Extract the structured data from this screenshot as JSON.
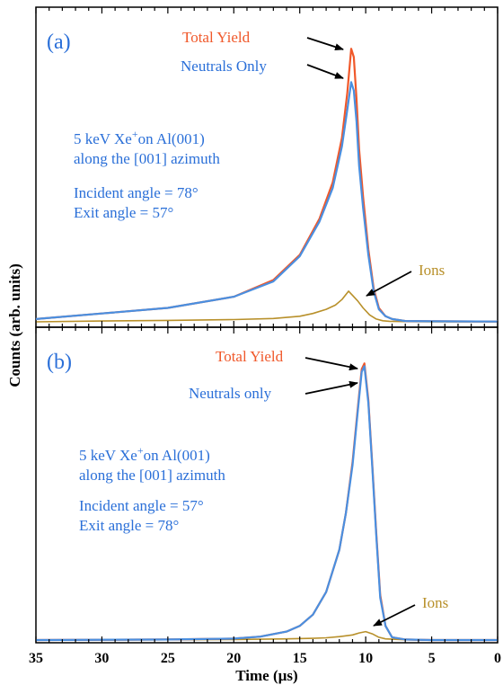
{
  "chart_data": {
    "type": "line",
    "xlabel": "Time (µs)",
    "ylabel": "Counts (arb. units)",
    "xlim": [
      35,
      0
    ],
    "x_reversed": true,
    "x_ticks": [
      "35",
      "30",
      "25",
      "20",
      "15",
      "10",
      "5",
      "0"
    ],
    "colors": {
      "total": "#f0582a",
      "neutrals": "#4a8fe0",
      "ions": "#b8902a",
      "text_blue": "#2a6fd8",
      "arrow": "#000000"
    },
    "panels": [
      {
        "label": "(a)",
        "labels": {
          "total": "Total Yield",
          "neutrals": "Neutrals Only",
          "ions": "Ions",
          "desc_line1": "5 keV Xe",
          "desc_sup": "+",
          "desc_line1_rest": "on Al(001)",
          "desc_line2": "along the  [001] azimuth",
          "incident": "Incident angle = 78°",
          "exit": "Exit angle = 57°"
        },
        "ylim": [
          0,
          1.0
        ],
        "series": [
          {
            "name": "Total Yield",
            "x": [
              35,
              30,
              25,
              20,
              17,
              15,
              13.5,
              12.5,
              11.8,
              11.4,
              11.1,
              10.9,
              10.7,
              10.5,
              10.2,
              9.8,
              9.4,
              9.0,
              8.5,
              8.0,
              7.0,
              5,
              0
            ],
            "y": [
              0.01,
              0.03,
              0.05,
              0.09,
              0.15,
              0.24,
              0.37,
              0.5,
              0.66,
              0.82,
              0.98,
              0.95,
              0.8,
              0.62,
              0.45,
              0.26,
              0.12,
              0.05,
              0.02,
              0.01,
              0.003,
              0.002,
              0.001
            ]
          },
          {
            "name": "Neutrals Only",
            "x": [
              35,
              30,
              25,
              20,
              17,
              15,
              13.5,
              12.5,
              11.8,
              11.4,
              11.1,
              10.9,
              10.7,
              10.5,
              10.2,
              9.8,
              9.4,
              9.0,
              8.5,
              8.0,
              7.0,
              5,
              0
            ],
            "y": [
              0.01,
              0.03,
              0.05,
              0.09,
              0.145,
              0.235,
              0.36,
              0.48,
              0.63,
              0.76,
              0.86,
              0.83,
              0.72,
              0.56,
              0.41,
              0.24,
              0.11,
              0.045,
              0.02,
              0.01,
              0.003,
              0.002,
              0.001
            ]
          },
          {
            "name": "Ions",
            "x": [
              35,
              30,
              25,
              20,
              17,
              15,
              14,
              13,
              12.3,
              11.8,
              11.3,
              11.0,
              10.6,
              10.2,
              9.7,
              9.2,
              8.7,
              8.2,
              7,
              5,
              0
            ],
            "y": [
              0.0,
              0.003,
              0.005,
              0.008,
              0.012,
              0.02,
              0.03,
              0.045,
              0.06,
              0.08,
              0.11,
              0.095,
              0.075,
              0.05,
              0.025,
              0.01,
              0.004,
              0.002,
              0.001,
              0.0,
              0.0
            ]
          }
        ]
      },
      {
        "label": "(b)",
        "labels": {
          "total": "Total Yield",
          "neutrals": "Neutrals only",
          "ions": "Ions",
          "desc_line1": "5 keV Xe",
          "desc_sup": "+",
          "desc_line1_rest": "on Al(001)",
          "desc_line2": "along the  [001] azimuth",
          "incident": "Incident angle = 57°",
          "exit": "Exit angle = 78°"
        },
        "ylim": [
          0,
          1.0
        ],
        "series": [
          {
            "name": "Total Yield",
            "x": [
              35,
              25,
              20,
              18,
              16,
              15,
              14,
              13,
              12,
              11.5,
              11,
              10.6,
              10.3,
              10.1,
              9.8,
              9.5,
              9.2,
              8.9,
              8.5,
              8.0,
              7,
              5,
              0
            ],
            "y": [
              0.0,
              0.002,
              0.005,
              0.012,
              0.03,
              0.05,
              0.09,
              0.17,
              0.32,
              0.45,
              0.63,
              0.82,
              0.96,
              0.98,
              0.85,
              0.62,
              0.38,
              0.16,
              0.05,
              0.01,
              0.002,
              0.0,
              0.0
            ]
          },
          {
            "name": "Neutrals only",
            "x": [
              35,
              25,
              20,
              18,
              16,
              15,
              14,
              13,
              12,
              11.5,
              11,
              10.6,
              10.3,
              10.1,
              9.8,
              9.5,
              9.2,
              8.9,
              8.5,
              8.0,
              7,
              5,
              0
            ],
            "y": [
              0.0,
              0.002,
              0.005,
              0.012,
              0.03,
              0.05,
              0.09,
              0.17,
              0.32,
              0.45,
              0.62,
              0.81,
              0.95,
              0.97,
              0.84,
              0.61,
              0.37,
              0.15,
              0.05,
              0.01,
              0.002,
              0.0,
              0.0
            ]
          },
          {
            "name": "Ions",
            "x": [
              35,
              25,
              20,
              16,
              14,
              13,
              12,
              11,
              10.5,
              10.0,
              9.5,
              9.0,
              8.5,
              7,
              5,
              0
            ],
            "y": [
              0.0,
              0.001,
              0.002,
              0.004,
              0.006,
              0.008,
              0.012,
              0.018,
              0.025,
              0.03,
              0.022,
              0.01,
              0.004,
              0.001,
              0.0,
              0.0
            ]
          }
        ]
      }
    ]
  }
}
